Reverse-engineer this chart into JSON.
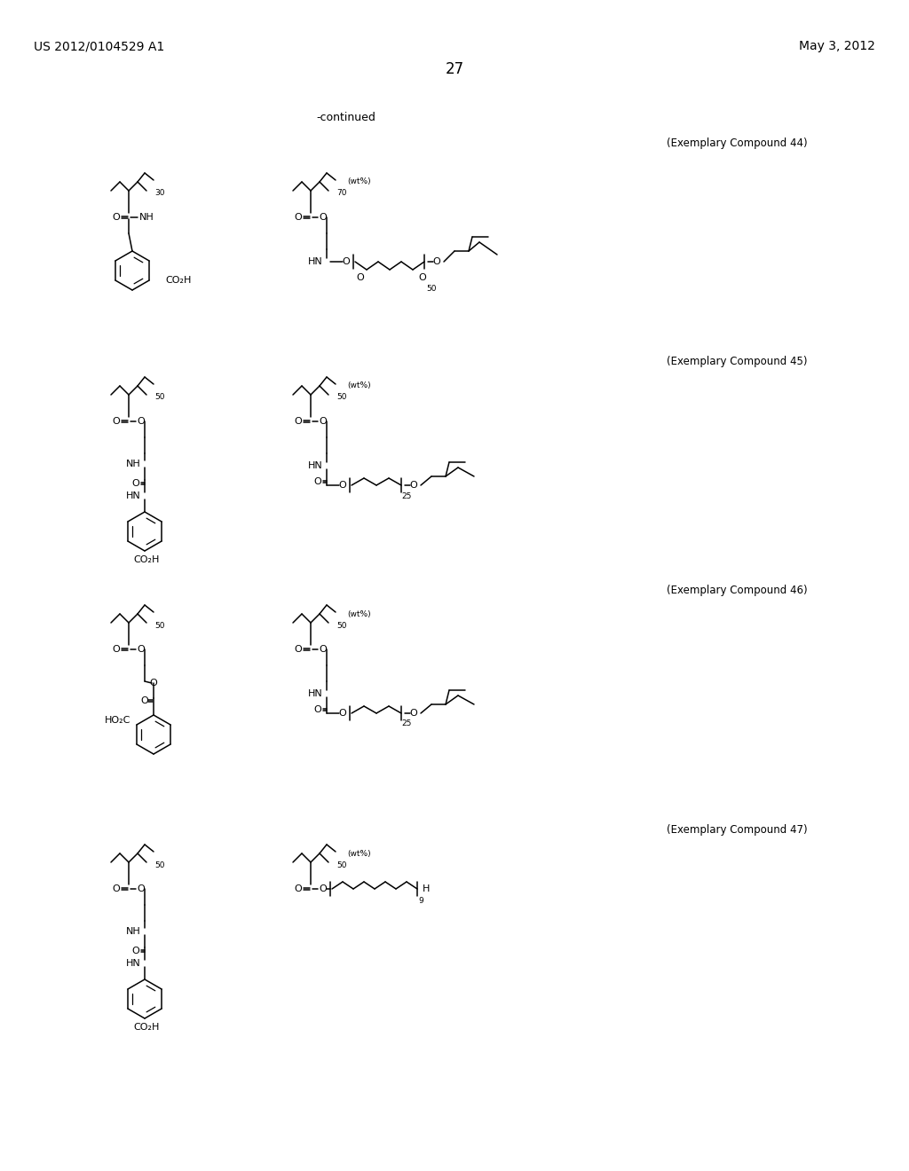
{
  "page_header_left": "US 2012/0104529 A1",
  "page_header_right": "May 3, 2012",
  "page_number": "27",
  "continued_label": "-continued",
  "background_color": "#ffffff",
  "text_color": "#000000",
  "compounds": [
    {
      "label": "(Exemplary Compound 44)"
    },
    {
      "label": "(Exemplary Compound 45)"
    },
    {
      "label": "(Exemplary Compound 46)"
    },
    {
      "label": "(Exemplary Compound 47)"
    }
  ],
  "font_size_header": 10,
  "font_size_label": 8.5,
  "font_size_page": 12,
  "font_size_chem": 8,
  "font_size_sub": 6.5
}
